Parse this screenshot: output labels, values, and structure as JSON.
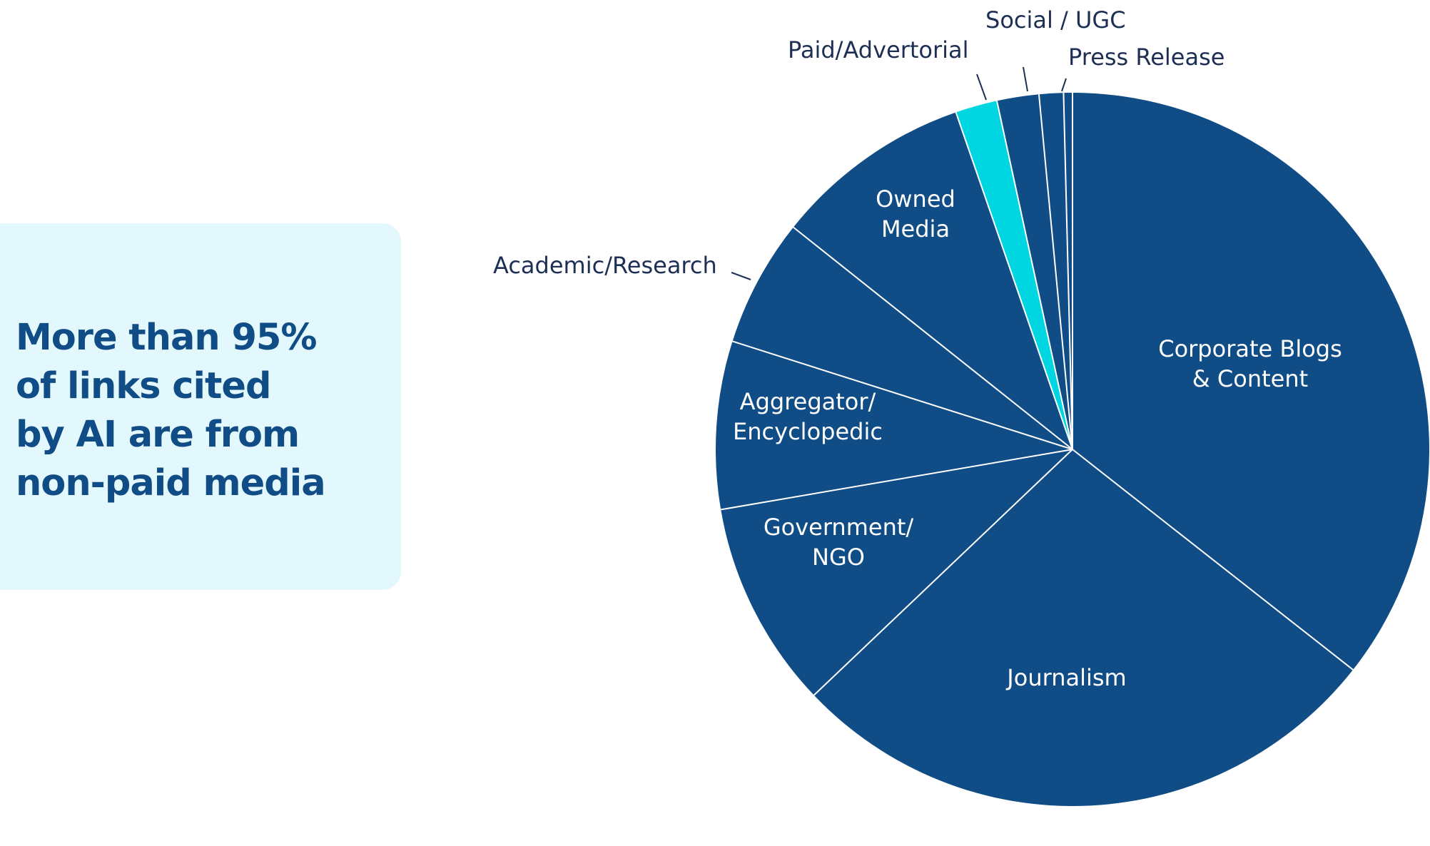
{
  "callout": {
    "lines": [
      "More than 95%",
      "of links cited",
      "by AI are from",
      "non-paid media"
    ]
  },
  "colors": {
    "slice": "#104c85",
    "highlight": "#00d5e2",
    "separator": "#ffffff",
    "label_on_slice": "#ffffff",
    "label_outside": "#1e2f55",
    "callout_text": "#104c85",
    "callout_bg": "#e3f8fc"
  },
  "chart_data": {
    "type": "pie",
    "title": "",
    "start": "12 o'clock",
    "direction": "clockwise",
    "unit": "%",
    "slices": [
      {
        "label": "Corporate Blogs & Content",
        "lines": [
          "Corporate Blogs",
          "& Content"
        ],
        "value": 35.6,
        "highlight": false,
        "label_position": "inside"
      },
      {
        "label": "Journalism",
        "lines": [
          "Journalism"
        ],
        "value": 27.3,
        "highlight": false,
        "label_position": "inside"
      },
      {
        "label": "Government/NGO",
        "lines": [
          "Government/",
          "NGO"
        ],
        "value": 9.4,
        "highlight": false,
        "label_position": "inside"
      },
      {
        "label": "Aggregator/Encyclopedic",
        "lines": [
          "Aggregator/",
          "Encyclopedic"
        ],
        "value": 7.6,
        "highlight": false,
        "label_position": "inside"
      },
      {
        "label": "Academic/Research",
        "lines": [
          "Academic/Research"
        ],
        "value": 5.8,
        "highlight": false,
        "label_position": "outside"
      },
      {
        "label": "Owned Media",
        "lines": [
          "Owned",
          "Media"
        ],
        "value": 9.0,
        "highlight": false,
        "label_position": "inside"
      },
      {
        "label": "Paid/Advertorial",
        "lines": [
          "Paid/Advertorial"
        ],
        "value": 1.9,
        "highlight": true,
        "label_position": "outside"
      },
      {
        "label": "Social / UGC",
        "lines": [
          "Social / UGC"
        ],
        "value": 1.9,
        "highlight": false,
        "label_position": "outside"
      },
      {
        "label": "Press Release",
        "lines": [
          "Press Release"
        ],
        "value": 1.1,
        "highlight": false,
        "label_position": "outside"
      },
      {
        "label": "",
        "lines": [],
        "value": 0.4,
        "highlight": false,
        "label_position": "none"
      }
    ]
  }
}
